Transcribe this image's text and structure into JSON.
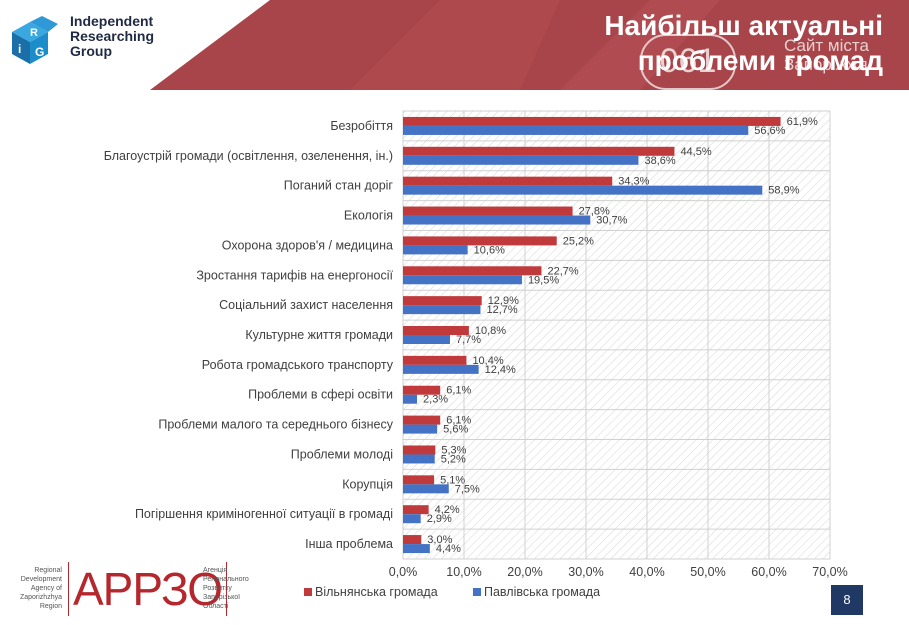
{
  "header": {
    "logo_letters": [
      "R",
      "i",
      "G"
    ],
    "logo_text": [
      "Independent",
      "Researching",
      "Group"
    ],
    "title_line1": "Найбільш актуальні",
    "title_line2": "проблеми громад",
    "watermark_badge": "061",
    "watermark_line1": "Сайт міста",
    "watermark_line2": "Запоріжжя"
  },
  "colors": {
    "header_red": "#a7454a",
    "series_red": "#c0393b",
    "series_blue": "#4472c4",
    "logo_blue": "#1c8dc9",
    "page_badge": "#1f3864"
  },
  "chart_data": {
    "type": "bar",
    "orientation": "horizontal",
    "categories": [
      "Безробіття",
      "Благоустрій громади (освітлення, озеленення, ін.)",
      "Поганий стан доріг",
      "Екологія",
      "Охорона здоров'я / медицина",
      "Зростання тарифів на енергоносії",
      "Соціальний захист населення",
      "Культурне життя громади",
      "Робота громадського транспорту",
      "Проблеми в сфері освіти",
      "Проблеми малого та середнього бізнесу",
      "Проблеми молоді",
      "Корупція",
      "Погіршення криміногенної ситуації в громаді",
      "Інша проблема"
    ],
    "series": [
      {
        "name": "Вільнянська громада",
        "values": [
          61.9,
          44.5,
          34.3,
          27.8,
          25.2,
          22.7,
          12.9,
          10.8,
          10.4,
          6.1,
          6.1,
          5.3,
          5.1,
          4.2,
          3.0
        ],
        "labels": [
          "61,9%",
          "44,5%",
          "34,3%",
          "27,8%",
          "25,2%",
          "22,7%",
          "12,9%",
          "10,8%",
          "10,4%",
          "6,1%",
          "6,1%",
          "5,3%",
          "5,1%",
          "4,2%",
          "3,0%"
        ]
      },
      {
        "name": "Павлівська громада",
        "values": [
          56.6,
          38.6,
          58.9,
          30.7,
          10.6,
          19.5,
          12.7,
          7.7,
          12.4,
          2.3,
          5.6,
          5.2,
          7.5,
          2.9,
          4.4
        ],
        "labels": [
          "56,6%",
          "38,6%",
          "58,9%",
          "30,7%",
          "10,6%",
          "19,5%",
          "12,7%",
          "7,7%",
          "12,4%",
          "2,3%",
          "5,6%",
          "5,2%",
          "7,5%",
          "2,9%",
          "4,4%"
        ]
      }
    ],
    "xlim": [
      0,
      70
    ],
    "xticks": [
      "0,0%",
      "10,0%",
      "20,0%",
      "30,0%",
      "40,0%",
      "50,0%",
      "60,0%",
      "70,0%"
    ],
    "xtick_values": [
      0,
      10,
      20,
      30,
      40,
      50,
      60,
      70
    ],
    "grid": true,
    "legend_position": "bottom"
  },
  "footer": {
    "left_text": [
      "Regional",
      "Development",
      "Agency of",
      "Zaporizhzhya",
      "Region"
    ],
    "logo": "АРРЗО",
    "right_text": [
      "Агенція",
      "Регіонального",
      "Розвитку",
      "Запорізької",
      "Області"
    ],
    "page_number": "8"
  }
}
